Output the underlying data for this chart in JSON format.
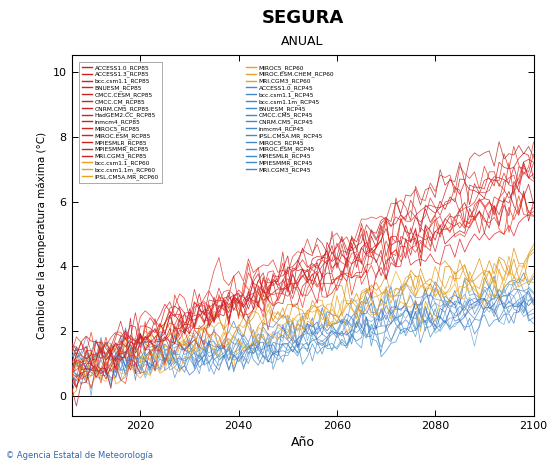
{
  "title": "SEGURA",
  "subtitle": "ANUAL",
  "xlabel": "Año",
  "ylabel": "Cambio de la temperatura máxima (°C)",
  "xlim": [
    2006,
    2100
  ],
  "ylim": [
    -0.6,
    10.5
  ],
  "yticks": [
    0,
    2,
    4,
    6,
    8,
    10
  ],
  "xticks": [
    2020,
    2040,
    2060,
    2080,
    2100
  ],
  "x_start": 2006,
  "x_end": 2100,
  "rcp85_colors": [
    "#cc1111",
    "#dd2222",
    "#bb1111",
    "#ee3333",
    "#aa1111",
    "#cc2222",
    "#dd1111",
    "#bb2222",
    "#ee2222",
    "#cc3333",
    "#aa2222",
    "#dd3333",
    "#bb3333",
    "#ee1111"
  ],
  "rcp60_colors": [
    "#e8a020",
    "#f0b030",
    "#d89010"
  ],
  "rcp45_colors": [
    "#3377cc",
    "#4488dd",
    "#2266bb",
    "#5599ee",
    "#2277bb",
    "#3388cc",
    "#4477bb",
    "#5588dd",
    "#2288cc",
    "#3399dd",
    "#2277cc",
    "#4499ee",
    "#3388dd"
  ],
  "models_rcp85": [
    "ACCESS1.0_RCP85",
    "ACCESS1.3_RCP85",
    "bcc.csm1.1_RCP85",
    "BNUESM_RCP85",
    "CMCC.CESM_RCP85",
    "CMCC.CM_RCP85",
    "CNRM.CM5_RCP85",
    "HadGEM2.CC_RCP85",
    "inmcm4_RCP85",
    "MIROC5_RCP85",
    "MIROC.ESM_RCP85",
    "MPIESMLR_RCP85",
    "MPIESMMR_RCP85",
    "MRI.CGM3_RCP85"
  ],
  "models_rcp60": [
    "bcc.csm1.1_RCP60",
    "bcc.csm1.1m_RCP60",
    "IPSL.CM5A.MR_RCP60",
    "MIROC5_RCP60",
    "MIROC.ESM.CHEM_RCP60",
    "MRI.CGM3_RCP60"
  ],
  "models_rcp45": [
    "ACCESS1.0_RCP45",
    "bcc.csm1.1_RCP45",
    "bcc.csm1.1m_RCP45",
    "BNUESM_RCP45",
    "CMCC.CM5_RCP45",
    "CNRM.CM5_RCP45",
    "inmcm4_RCP45",
    "IPSL.CM5A.MR_RCP45",
    "MIROC5_RCP45",
    "MIROC.ESM_RCP45",
    "MPIESMLR_RCP45",
    "MPIESMMR_RCP45",
    "MRI.CGM3_RCP45"
  ],
  "rcp85_trend_ends": [
    6.8,
    7.2,
    5.9,
    6.5,
    7.5,
    6.2,
    6.9,
    7.8,
    5.5,
    7.0,
    6.4,
    6.7,
    7.1,
    6.3
  ],
  "rcp60_trend_ends": [
    4.2,
    3.8,
    4.5,
    4.0,
    3.5,
    4.3
  ],
  "rcp45_trend_ends": [
    3.2,
    2.8,
    3.0,
    3.5,
    2.6,
    3.1,
    2.5,
    3.3,
    3.0,
    2.9,
    3.2,
    3.4,
    2.7
  ],
  "footer_text": "© Agencia Estatal de Meteorología",
  "legend_col1": [
    "ACCESS1.0_RCP85",
    "ACCESS1.3_RCP85",
    "bcc.csm1.1_RCP85",
    "BNUESM_RCP85",
    "CMCC.CESM_RCP85",
    "CMCC.CM_RCP85",
    "CNRM.CM5_RCP85",
    "HadGEM2.CC_RCP85",
    "inmcm4_RCP85",
    "MIROC5_RCP85",
    "MIROC.ESM_RCP85",
    "MPIESMLR_RCP85",
    "MPIESMMR_RCP85",
    "MRI.CGM3_RCP85",
    "bcc.csm1.1_RCP60",
    "bcc.csm1.1m_RCP60",
    "IPSL.CM5A.MR_RCP60"
  ],
  "legend_col2": [
    "MIROC5_RCP60",
    "MIROC.ESM.CHEM_RCP60",
    "MRI.CGM3_RCP60",
    "ACCESS1.0_RCP45",
    "bcc.csm1.1_RCP45",
    "bcc.csm1.1m_RCP45",
    "BNUESM_RCP45",
    "CMCC.CM5_RCP45",
    "CNRM.CM5_RCP45",
    "inmcm4_RCP45",
    "IPSL.CM5A.MR_RCP45",
    "MIROC5_RCP45",
    "MIROC.ESM_RCP45",
    "MPIESMLR_RCP45",
    "MPIESMMR_RCP45",
    "MRI.CGM3_RCP45"
  ],
  "rcp85_base_color": "#cc2222",
  "rcp60_base_color": "#e8a020",
  "rcp45_base_color": "#4488cc"
}
